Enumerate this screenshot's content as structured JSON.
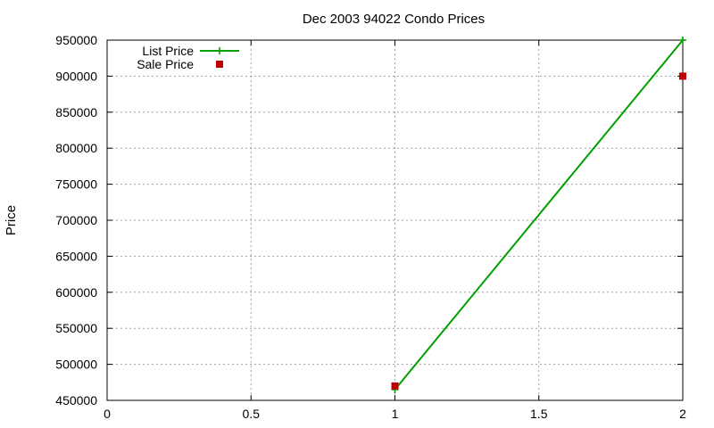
{
  "chart_data": {
    "type": "line",
    "title": "Dec 2003 94022 Condo Prices",
    "xlabel": "",
    "ylabel": "Price",
    "xlim": [
      0,
      2
    ],
    "ylim": [
      450000,
      950000
    ],
    "xticks": [
      "0",
      "0.5",
      "1",
      "1.5",
      "2"
    ],
    "yticks": [
      "450000",
      "500000",
      "550000",
      "600000",
      "650000",
      "700000",
      "750000",
      "800000",
      "850000",
      "900000",
      "950000"
    ],
    "grid": true,
    "legend_position": "top-left",
    "series": [
      {
        "name": "List Price",
        "style": "linespoints",
        "marker": "plus",
        "color": "#00a000",
        "x": [
          1,
          2
        ],
        "y": [
          465000,
          950000
        ]
      },
      {
        "name": "Sale Price",
        "style": "points",
        "marker": "square",
        "color": "#c00000",
        "x": [
          1,
          2
        ],
        "y": [
          470000,
          900000
        ]
      }
    ]
  }
}
